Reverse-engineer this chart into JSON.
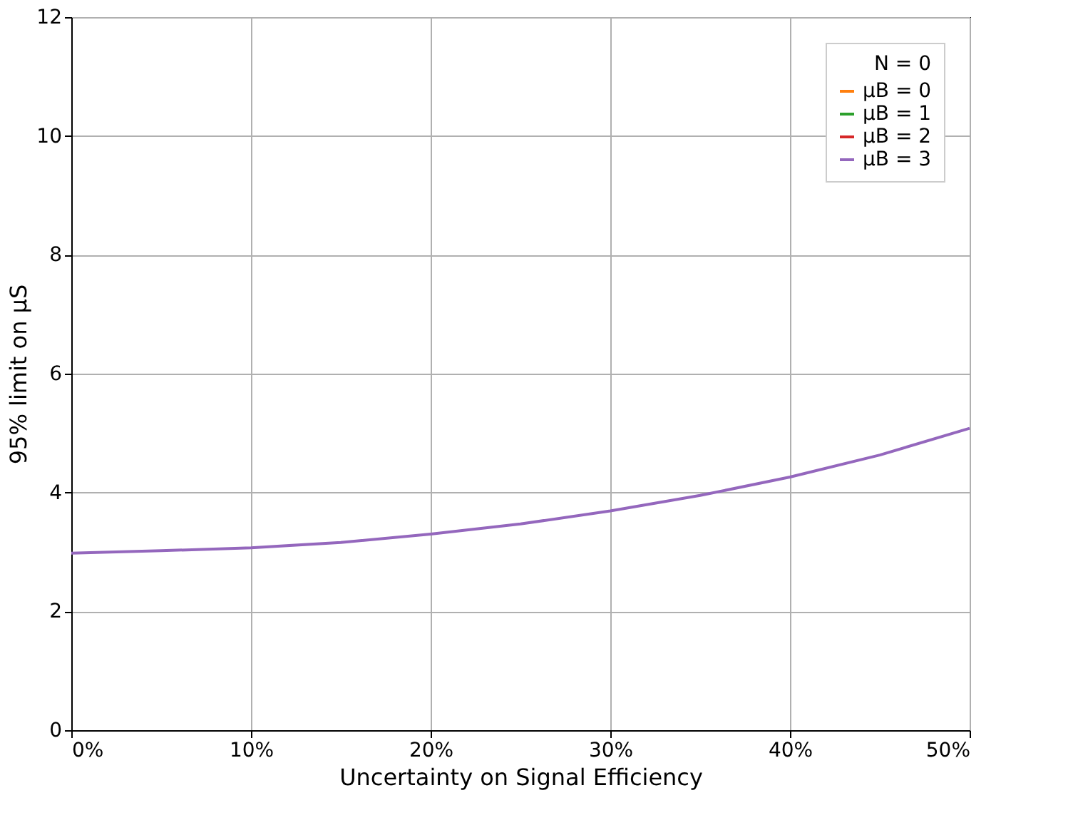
{
  "chart_data": {
    "type": "line",
    "xlabel": "Uncertainty on Signal Efficiency",
    "ylabel": "95% limit on μS",
    "legend_title": "N = 0",
    "x": [
      0,
      5,
      10,
      15,
      20,
      25,
      30,
      35,
      40,
      45,
      50
    ],
    "series": [
      {
        "name": "μB = 0",
        "color": "#ff7f0e",
        "values": [
          null,
          null,
          null,
          null,
          null,
          null,
          null,
          null,
          null,
          null,
          null
        ]
      },
      {
        "name": "μB = 1",
        "color": "#2ca02c",
        "values": [
          null,
          null,
          null,
          null,
          null,
          null,
          null,
          null,
          null,
          null,
          null
        ]
      },
      {
        "name": "μB = 2",
        "color": "#d62728",
        "values": [
          null,
          null,
          null,
          null,
          null,
          null,
          null,
          null,
          null,
          null,
          null
        ]
      },
      {
        "name": "μB = 3",
        "color": "#9467bd",
        "values": [
          2.98,
          3.02,
          3.07,
          3.16,
          3.3,
          3.47,
          3.69,
          3.95,
          4.26,
          4.63,
          5.08
        ]
      }
    ],
    "xlim": [
      0,
      50
    ],
    "xticks": [
      {
        "value": 0,
        "label": "0%"
      },
      {
        "value": 10,
        "label": "10%"
      },
      {
        "value": 20,
        "label": "20%"
      },
      {
        "value": 30,
        "label": "30%"
      },
      {
        "value": 40,
        "label": "40%"
      },
      {
        "value": 50,
        "label": "50%"
      }
    ],
    "ylim": [
      0,
      12
    ],
    "yticks": [
      0,
      2,
      4,
      6,
      8,
      10,
      12
    ],
    "grid": true,
    "legend": "top right",
    "marker": "none",
    "line_style": "solid"
  }
}
